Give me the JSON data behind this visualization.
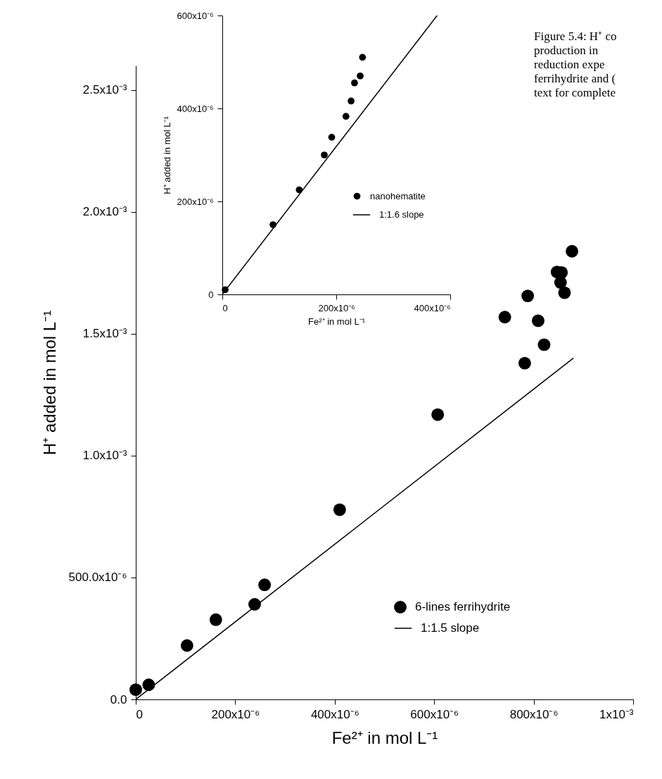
{
  "chart_data": [
    {
      "type": "scatter",
      "xlabel": "Fe²⁺ in mol L⁻¹",
      "ylabel": "H⁺ added in mol L⁻¹",
      "xlim": [
        0,
        0.001
      ],
      "ylim": [
        0,
        0.0026
      ],
      "xticks": [
        0,
        {
          "value": 0.0002,
          "label": "200x10⁻⁶"
        },
        {
          "value": 0.0004,
          "label": "400x10⁻⁶"
        },
        {
          "value": 0.0006,
          "label": "600x10⁻⁶"
        },
        {
          "value": 0.0008,
          "label": "800x10⁻⁶"
        },
        {
          "value": 0.001,
          "label": "1x10⁻³"
        }
      ],
      "yticks": [
        {
          "value": 0,
          "label": "0.0"
        },
        {
          "value": 0.0005,
          "label": "500.0x10⁻⁶"
        },
        {
          "value": 0.001,
          "label": "1.0x10⁻³"
        },
        {
          "value": 0.0015,
          "label": "1.5x10⁻³"
        },
        {
          "value": 0.002,
          "label": "2.0x10⁻³"
        },
        {
          "value": 0.0025,
          "label": "2.5x10⁻³"
        }
      ],
      "grid": false,
      "legend": "bottom right",
      "line_style": "solid",
      "series": [
        {
          "name": "6-lines ferrihydrite",
          "marker": "circle",
          "color": "#000000",
          "x": [
            0,
            2.6e-05,
            0.000103,
            0.000161,
            0.000239,
            0.000259,
            0.00041,
            0.000607,
            0.000742,
            0.000809,
            0.000788,
            0.000821,
            0.000782,
            0.000877,
            0.000847,
            0.000856,
            0.000854,
            0.000862
          ],
          "values": [
            4e-05,
            6e-05,
            0.000221,
            0.000327,
            0.00039,
            0.00047,
            0.000778,
            0.001168,
            0.001568,
            0.001553,
            0.001655,
            0.001455,
            0.001379,
            0.001838,
            0.001753,
            0.001751,
            0.00171,
            0.001668
          ]
        },
        {
          "name": "1:1.5 slope",
          "type": "line",
          "marker": "none",
          "color": "#000000",
          "x": [
            0,
            0.00088
          ],
          "values": [
            0,
            0.0014
          ]
        }
      ],
      "annotations": [
        "Figure 5.4: H⁺ co",
        "production in",
        "reduction expe",
        "ferrihydrite and (",
        "text for complete"
      ]
    },
    {
      "type": "scatter",
      "xlabel": "Fe²⁺ in mol L⁻¹",
      "ylabel": "H⁺ added in mol L⁻¹",
      "xlim": [
        0,
        0.0004
      ],
      "ylim": [
        0,
        0.0006
      ],
      "xticks": [
        0,
        {
          "value": 0.0002,
          "label": "200x10⁻⁶"
        },
        {
          "value": 0.0004,
          "label": "400x10⁻⁶"
        }
      ],
      "yticks": [
        0,
        {
          "value": 0.0002,
          "label": "200x10⁻⁶"
        },
        {
          "value": 0.0004,
          "label": "400x10⁻⁶"
        },
        {
          "value": 0.0006,
          "label": "600x10⁻⁶"
        }
      ],
      "grid": false,
      "legend": "bottom right",
      "line_style": "solid",
      "series": [
        {
          "name": "nanohematite",
          "marker": "circle",
          "color": "#000000",
          "x": [
            5e-06,
            8.9e-05,
            0.000135,
            0.000179,
            0.000192,
            0.000217,
            0.000226,
            0.000232,
            0.000242,
            0.000246
          ],
          "values": [
            1e-05,
            0.00015,
            0.000225,
            0.0003,
            0.000338,
            0.000383,
            0.000416,
            0.000455,
            0.00047,
            0.00051
          ]
        },
        {
          "name": "1:1.6 slope",
          "type": "line",
          "marker": "none",
          "color": "#000000",
          "x": [
            0,
            0.000377
          ],
          "values": [
            0,
            0.0006
          ]
        }
      ]
    }
  ]
}
